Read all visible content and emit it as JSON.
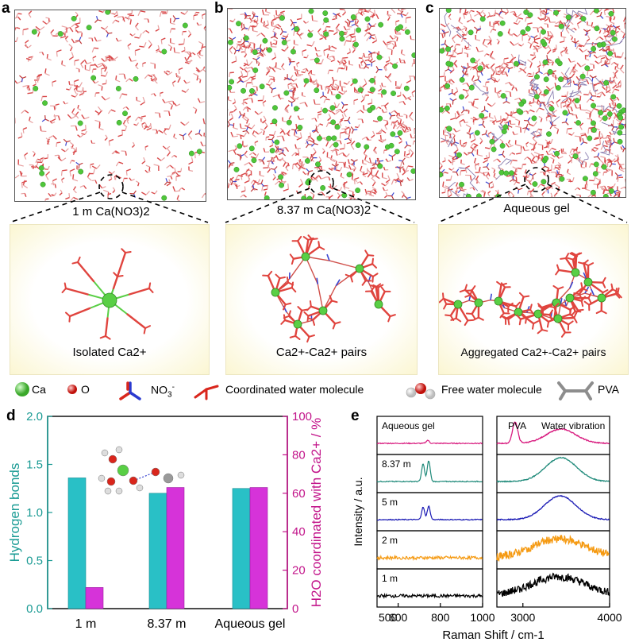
{
  "panels": {
    "a": {
      "label": "a",
      "concentration": "1 m Ca(NO3)2",
      "zoom_caption": "Isolated Ca2+"
    },
    "b": {
      "label": "b",
      "concentration": "8.37 m Ca(NO3)2",
      "zoom_caption": "Ca2+-Ca2+ pairs"
    },
    "c": {
      "label": "c",
      "concentration": "Aqueous gel",
      "zoom_caption": "Aggregated Ca2+-Ca2+ pairs"
    }
  },
  "legend": {
    "ca": "Ca",
    "o": "O",
    "no3": "NO3-",
    "coord_water": "Coordinated water molecule",
    "free_water": "Free water molecule",
    "pva": "PVA"
  },
  "colors": {
    "ca_green": "#4fc63a",
    "oxygen_red": "#d9261c",
    "bar_cyan": "#29c0c6",
    "bar_magenta": "#d633d9",
    "teal_axis": "#1a9b94",
    "magenta_axis": "#c2148a",
    "trace_pink": "#d81b7f",
    "trace_teal": "#1f8a7a",
    "trace_blue": "#1b1bb5",
    "trace_orange": "#f59a12",
    "trace_black": "#000000"
  },
  "chart_data": [
    {
      "panel": "d",
      "type": "bar",
      "categories": [
        "1 m",
        "8.37 m",
        "Aqueous gel"
      ],
      "series": [
        {
          "name": "Hydrogen bonds",
          "axis": "left",
          "values": [
            1.36,
            1.2,
            1.25
          ]
        },
        {
          "name": "H2O coordinated with Ca2+ / %",
          "axis": "right",
          "values": [
            11,
            63,
            63
          ]
        }
      ],
      "ylabel_left": "Hydrogen bonds",
      "ylabel_right": "H2O coordinated with Ca2+ / %",
      "ylim_left": [
        0,
        2.0
      ],
      "ylim_right": [
        0,
        100
      ],
      "yticks_left": [
        "0.0",
        "0.5",
        "1.0",
        "1.5",
        "2.0"
      ],
      "yticks_right": [
        "0",
        "20",
        "40",
        "60",
        "80",
        "100"
      ]
    },
    {
      "panel": "e",
      "type": "line",
      "xlabel": "Raman Shift / cm-1",
      "ylabel": "Intensity / a.u.",
      "left_range": [
        500,
        1000
      ],
      "left_ticks": [
        "600",
        "800",
        "1000"
      ],
      "right_range": [
        2700,
        4000
      ],
      "right_ticks": [
        "3000",
        "4000"
      ],
      "right_annotations": [
        "PVA",
        "Water vibration"
      ],
      "traces": [
        {
          "name": "Aqueous gel",
          "color": "#d81b7f",
          "left_peaks": [
            {
              "x": 740,
              "h": 0.15
            }
          ],
          "right_peaks": [
            {
              "x": 2910,
              "h": 0.9,
              "w": 30
            },
            {
              "x": 3440,
              "h": 0.6,
              "w": 170
            }
          ]
        },
        {
          "name": "8.37 m",
          "color": "#1f8a7a",
          "left_peaks": [
            {
              "x": 718,
              "h": 0.85
            },
            {
              "x": 745,
              "h": 1.0
            }
          ],
          "right_peaks": [
            {
              "x": 3440,
              "h": 1.0,
              "w": 180
            }
          ]
        },
        {
          "name": "5 m",
          "color": "#1b1bb5",
          "left_peaks": [
            {
              "x": 718,
              "h": 0.6
            },
            {
              "x": 745,
              "h": 0.65
            }
          ],
          "right_peaks": [
            {
              "x": 3430,
              "h": 1.0,
              "w": 180
            }
          ]
        },
        {
          "name": "2 m",
          "color": "#f59a12",
          "left_peaks": [],
          "right_peaks": [
            {
              "x": 3420,
              "h": 0.8,
              "w": 300
            }
          ]
        },
        {
          "name": "1 m",
          "color": "#000000",
          "left_peaks": [],
          "right_peaks": [
            {
              "x": 3410,
              "h": 0.8,
              "w": 320
            }
          ]
        }
      ]
    }
  ]
}
